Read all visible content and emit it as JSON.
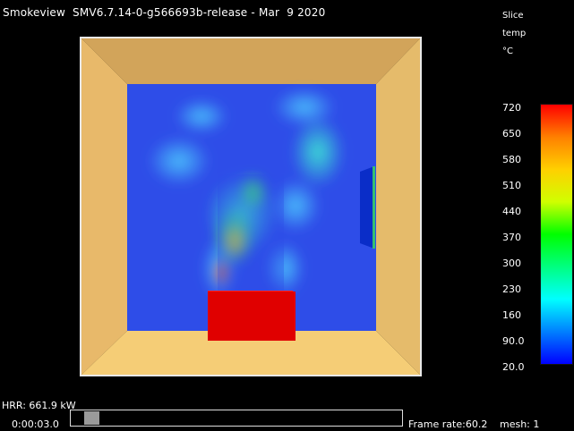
{
  "header": {
    "app_title": "Smokeview  SMV6.7.14-0-g566693b-release - Mar  9 2020"
  },
  "colorbar": {
    "type_label": "Slice",
    "quantity_label": "temp",
    "unit_label": "°C",
    "tick_labels": [
      "720",
      "650",
      "580",
      "510",
      "440",
      "370",
      "300",
      "230",
      "160",
      "90.0",
      "20.0"
    ],
    "gradient_stops": [
      "#ff0000",
      "#ff8000",
      "#ffd000",
      "#d0ff00",
      "#00ff00",
      "#00ff80",
      "#00ffff",
      "#0080ff",
      "#0000ff"
    ]
  },
  "status": {
    "hrr": "HRR: 661.9 kW",
    "time": "0:00:03.0",
    "time_progress": 0.04,
    "frame_rate": "Frame rate:60.2",
    "mesh": "mesh: 1"
  },
  "scene": {
    "room_colors": {
      "top": "#d2a45a",
      "left": "#e8b96a",
      "right": "#e5bb6b",
      "bottom": "#f5cd76"
    },
    "slice_base": "#2e4de8",
    "burner_color": "#e00000"
  }
}
